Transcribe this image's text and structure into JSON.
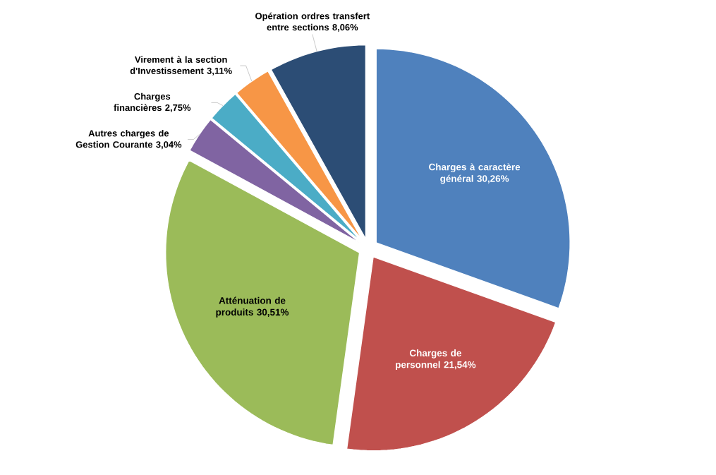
{
  "chart_data": {
    "type": "pie",
    "categories": [
      "Charges à caractère général",
      "Charges de personnel",
      "Atténuation de produits",
      "Autres charges de Gestion Courante",
      "Charges financières",
      "Virement à la section d'Investissement",
      "Opération ordres transfert entre sections"
    ],
    "values": [
      30.26,
      21.54,
      30.51,
      3.04,
      2.75,
      3.11,
      8.06
    ],
    "value_labels": [
      "30,26%",
      "21,54%",
      "30,51%",
      "3,04%",
      "2,75%",
      "3,11%",
      "8,06%"
    ],
    "colors": [
      "#4f81bd",
      "#c0504d",
      "#9bbb59",
      "#8064a2",
      "#4bacc6",
      "#f79646",
      "#2c4d75"
    ]
  }
}
